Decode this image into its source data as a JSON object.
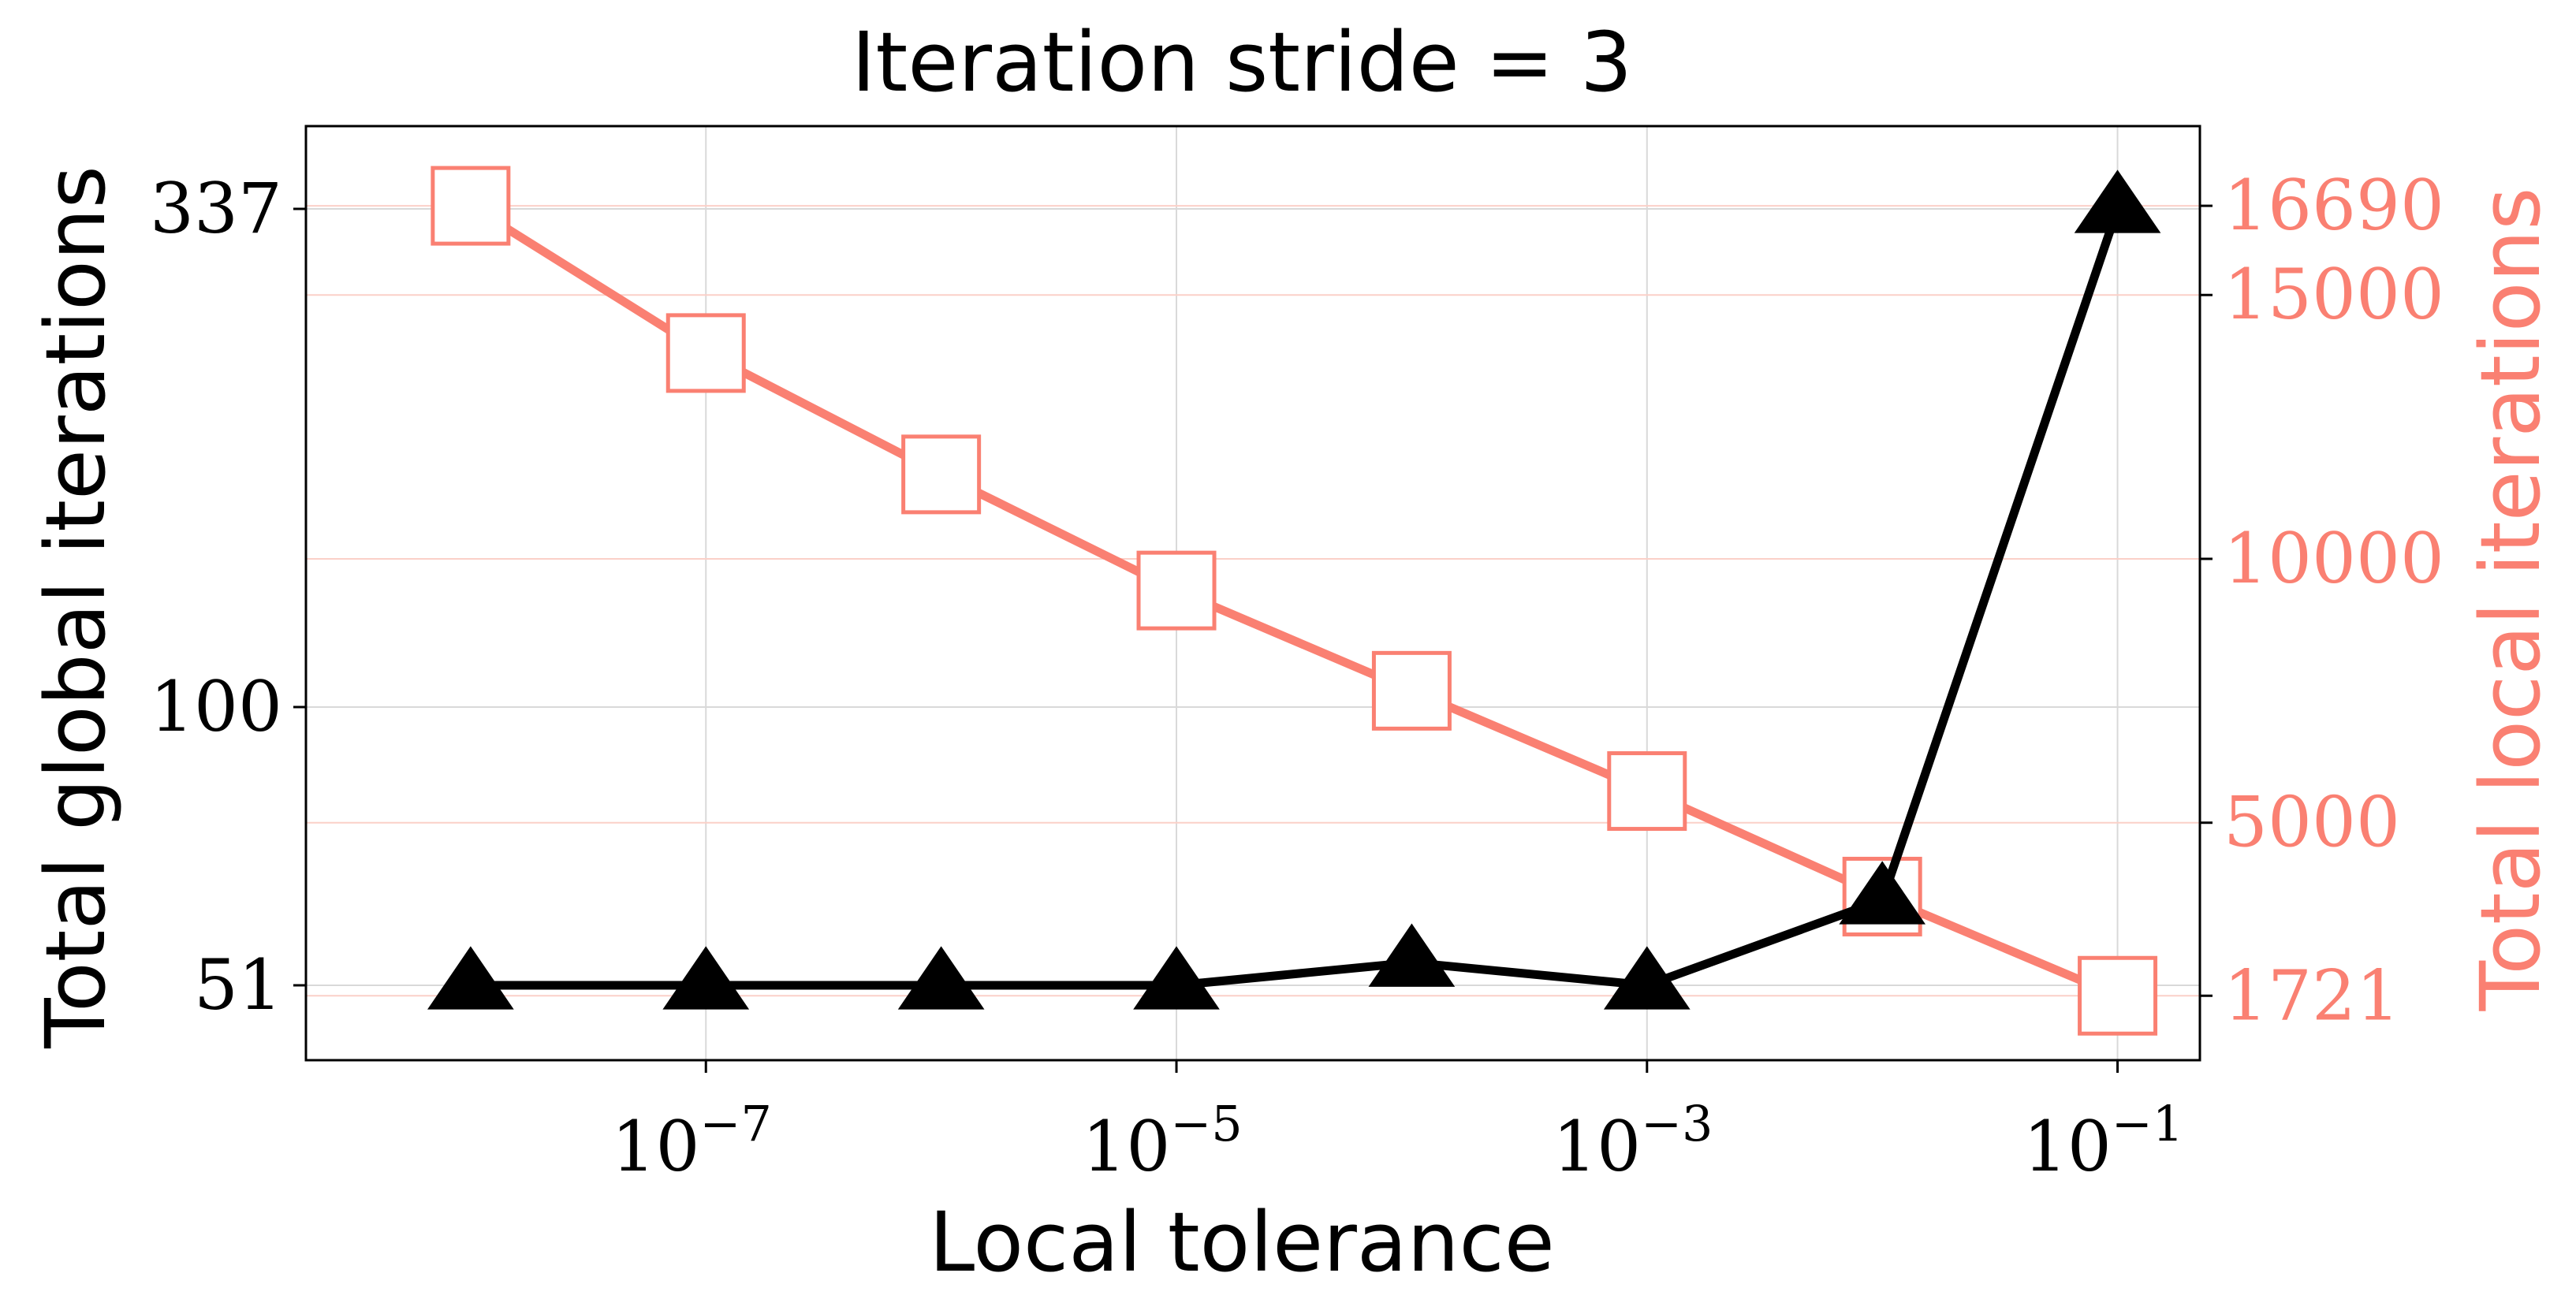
{
  "chart_data": {
    "type": "line",
    "title": "Iteration stride = 3",
    "xlabel": "Local tolerance",
    "ylabel_left": "Total global iterations",
    "ylabel_right": "Total local iterations",
    "x_scale": "log",
    "x": [
      1e-08,
      1e-07,
      1e-06,
      1e-05,
      0.0001,
      0.001,
      0.01,
      0.1
    ],
    "x_tick_values": [
      1e-07,
      1e-05,
      0.001,
      0.1
    ],
    "x_tick_labels": [
      {
        "base": "10",
        "exp": "−7"
      },
      {
        "base": "10",
        "exp": "−5"
      },
      {
        "base": "10",
        "exp": "−3"
      },
      {
        "base": "10",
        "exp": "−1"
      }
    ],
    "xlim_log10": [
      -8.7,
      -0.65
    ],
    "left_axis": {
      "scale": "linear",
      "ylim": [
        40,
        368
      ],
      "tick_values": [
        51,
        100,
        337
      ],
      "tick_positions": [
        51,
        100,
        337
      ],
      "note": "axis is non-uniform; labels placed at 51, 100, 337 positions"
    },
    "right_axis": {
      "ylim": [
        500,
        18200
      ],
      "tick_values": [
        1721,
        5000,
        10000,
        15000,
        16690
      ],
      "tick_labels": [
        "1721",
        "5000",
        "10000",
        "15000",
        "16690"
      ]
    },
    "series": [
      {
        "name": "Total global iterations",
        "axis": "left",
        "marker": "triangle",
        "color": "#000000",
        "values": [
          51,
          51,
          51,
          51,
          55,
          51,
          66,
          337
        ]
      },
      {
        "name": "Total local iterations",
        "axis": "right",
        "marker": "square-open",
        "color": "#FA8072",
        "values": [
          16690,
          13900,
          11600,
          9400,
          7500,
          5600,
          3600,
          1721
        ]
      }
    ],
    "grid": true,
    "colors": {
      "primary": "#000000",
      "secondary": "#FA8072",
      "grid": "#d9d9d9"
    }
  }
}
